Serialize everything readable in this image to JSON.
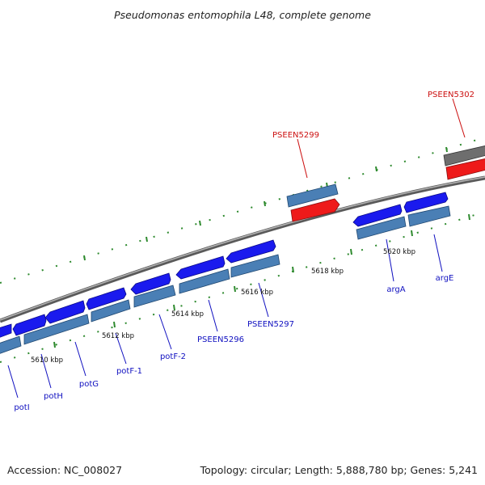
{
  "title": "Pseudomonas entomophila L48, complete genome",
  "footer": {
    "accession": "Accession: NC_008027",
    "summary": "Topology: circular; Length: 5,888,780 bp; Genes: 5,241"
  },
  "colors": {
    "gene_blue": "#1a1aee",
    "gene_steel": "#4a7fb5",
    "gene_red": "#ee1a1a",
    "gene_gray": "#6e6e6e",
    "tick_green": "#2e8a2e",
    "backbone": "#8c8c8c",
    "label_blue": "#1010c0",
    "label_red": "#cc1111"
  },
  "scale_labels": [
    "5610 kbp",
    "5612 kbp",
    "5614 kbp",
    "5616 kbp",
    "5618 kbp",
    "5620 kbp"
  ],
  "gene_labels": [
    {
      "text": "potI",
      "color": "blue"
    },
    {
      "text": "potH",
      "color": "blue"
    },
    {
      "text": "potG",
      "color": "blue"
    },
    {
      "text": "potF-1",
      "color": "blue"
    },
    {
      "text": "potF-2",
      "color": "blue"
    },
    {
      "text": "PSEEN5296",
      "color": "blue"
    },
    {
      "text": "PSEEN5297",
      "color": "blue"
    },
    {
      "text": "argA",
      "color": "blue"
    },
    {
      "text": "argE",
      "color": "blue"
    },
    {
      "text": "PSEEN5299",
      "color": "red"
    },
    {
      "text": "PSEEN5302",
      "color": "red"
    }
  ]
}
